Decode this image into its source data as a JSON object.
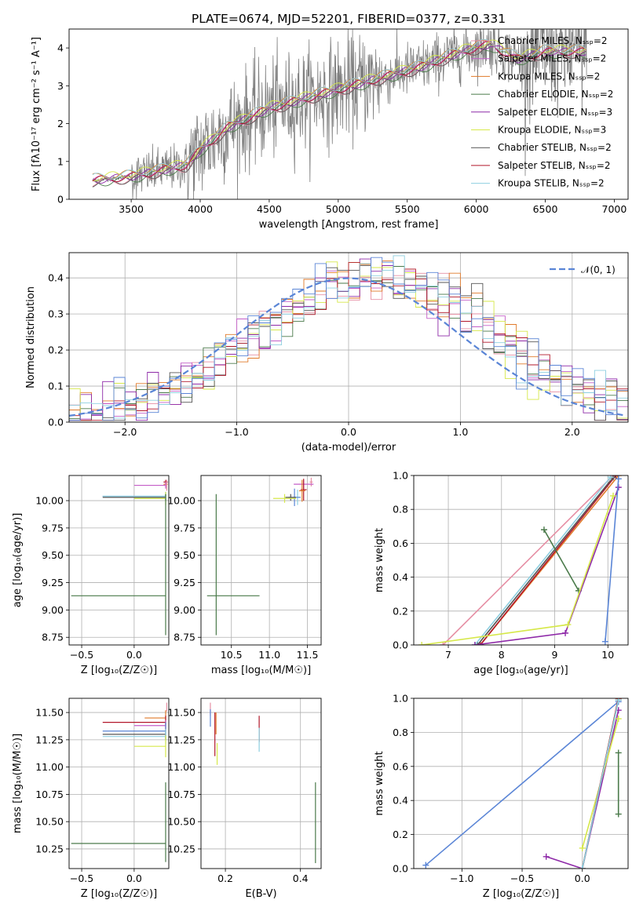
{
  "figure_title": "PLATE=0674, MJD=52201, FIBERID=0377, z=0.331",
  "chart_data": [
    {
      "type": "line",
      "name": "spectrum",
      "xlabel": "wavelength [Angstrom, rest frame]",
      "ylabel": "Flux [f_λ 10^-17 erg cm^-2 s^-1 A^-1]",
      "xlim": [
        3050,
        7100
      ],
      "ylim": [
        0,
        4.5
      ],
      "xticks": [
        3500,
        4000,
        4500,
        5000,
        5500,
        6000,
        6500,
        7000
      ],
      "yticks": [
        0,
        1,
        2,
        3,
        4
      ],
      "grid": false,
      "legend_position": "top-right",
      "legend": [
        {
          "label": "Chabrier MILES, N_SSP=2",
          "color": "#e68fa4"
        },
        {
          "label": "Salpeter MILES, N_SSP=2",
          "color": "#c45ec8"
        },
        {
          "label": "Kroupa MILES, N_SSP=2",
          "color": "#e07a2a"
        },
        {
          "label": "Chabrier ELODIE, N_SSP=2",
          "color": "#4a7a4a"
        },
        {
          "label": "Salpeter ELODIE, N_SSP=3",
          "color": "#8e2aa8"
        },
        {
          "label": "Kroupa ELODIE, N_SSP=3",
          "color": "#d6e84a"
        },
        {
          "label": "Chabrier STELIB, N_SSP=2",
          "color": "#555555"
        },
        {
          "label": "Salpeter STELIB, N_SSP=2",
          "color": "#b2182b"
        },
        {
          "label": "Kroupa STELIB, N_SSP=2",
          "color": "#8ecfe0"
        }
      ],
      "data_color": "#808080",
      "data_range": [
        3220,
        6800
      ],
      "continuum": {
        "x": [
          3220,
          3500,
          3700,
          3900,
          4000,
          4200,
          4500,
          4800,
          5000,
          5300,
          5600,
          5900,
          6100,
          6300,
          6500,
          6800
        ],
        "y": [
          0.5,
          0.6,
          0.75,
          0.9,
          1.3,
          1.9,
          2.4,
          2.7,
          2.9,
          3.2,
          3.5,
          3.9,
          4.1,
          3.7,
          3.9,
          3.9
        ]
      }
    },
    {
      "type": "step-histogram",
      "name": "residuals",
      "xlabel": "(data-model)/error",
      "ylabel": "Normed distribution",
      "xlim": [
        -2.5,
        2.5
      ],
      "ylim": [
        0,
        0.47
      ],
      "xticks": [
        -2,
        -1,
        0,
        1,
        2
      ],
      "yticks": [
        0.0,
        0.1,
        0.2,
        0.3,
        0.4
      ],
      "grid": true,
      "legend_position": "top-right",
      "normal_label": "𝒩(0, 1)",
      "normal_color": "#5a85d6",
      "series_colors": [
        "#e68fa4",
        "#c45ec8",
        "#e07a2a",
        "#4a7a4a",
        "#8e2aa8",
        "#d6e84a",
        "#555555",
        "#b2182b",
        "#8ecfe0",
        "#5a85d6"
      ],
      "bin_width": 0.1
    },
    {
      "type": "scatter",
      "name": "age-vs-Z",
      "xlabel": "Z [log10(Z/Z☉)]",
      "ylabel": "age [log10(age/yr)]",
      "xlim": [
        -0.62,
        0.33
      ],
      "ylim": [
        8.68,
        10.23
      ],
      "xticks": [
        -0.5,
        0.0
      ],
      "yticks": [
        8.75,
        9.0,
        9.25,
        9.5,
        9.75,
        10.0
      ],
      "grid": true,
      "points": [
        {
          "x": 0.3,
          "y": 10.17,
          "xerr": 0.02,
          "yerr": 0.02,
          "color": "#b2182b"
        },
        {
          "x": 0.3,
          "y": 10.15,
          "xerr": 0.02,
          "yerr": 0.02,
          "color": "#e07a2a"
        },
        {
          "x": 0.3,
          "y": 10.14,
          "x0": 0.0,
          "yerr": 0.03,
          "color": "#c45ec8"
        },
        {
          "x": 0.31,
          "y": 10.14,
          "yerr": 0.05,
          "color": "#e68fa4"
        },
        {
          "x": 0.3,
          "y": 10.04,
          "x0": -0.3,
          "yerr": 0.04,
          "color": "#5a85d6"
        },
        {
          "x": 0.3,
          "y": 10.04,
          "x0": -0.3,
          "yerr": 0.04,
          "color": "#8ecfe0"
        },
        {
          "x": 0.3,
          "y": 10.03,
          "x0": -0.3,
          "yerr": 0.03,
          "color": "#555555"
        },
        {
          "x": 0.3,
          "y": 10.02,
          "x0": 0.0,
          "yerr": 0.06,
          "color": "#d6e84a"
        },
        {
          "x": 0.3,
          "y": 9.13,
          "x0": -0.6,
          "ylow": 8.77,
          "yhigh": 10.06,
          "color": "#4a7a4a"
        }
      ]
    },
    {
      "type": "scatter",
      "name": "age-vs-mass",
      "xlabel": "mass [log10(M/M☉)]",
      "ylabel": "",
      "xlim": [
        10.1,
        11.68
      ],
      "ylim": [
        8.68,
        10.23
      ],
      "xticks": [
        10.5,
        11.0,
        11.5
      ],
      "yticks": [
        8.75,
        9.0,
        9.25,
        9.5,
        9.75,
        10.0
      ],
      "grid": true,
      "points": [
        {
          "x": 11.55,
          "y": 10.17,
          "yerr": 0.04,
          "xerr": 0.02,
          "color": "#e68fa4"
        },
        {
          "x": 11.45,
          "y": 10.15,
          "yerr": 0.04,
          "xerr": 0.13,
          "color": "#c45ec8"
        },
        {
          "x": 11.45,
          "y": 10.1,
          "yerr": 0.1,
          "xerr": 0.04,
          "color": "#b2182b"
        },
        {
          "x": 11.43,
          "y": 10.09,
          "yerr": 0.1,
          "xerr": 0.04,
          "color": "#e07a2a"
        },
        {
          "x": 11.37,
          "y": 10.03,
          "yerr": 0.07,
          "xerr": 0.04,
          "color": "#8ecfe0"
        },
        {
          "x": 11.33,
          "y": 10.03,
          "yerr": 0.08,
          "xerr": 0.08,
          "color": "#5a85d6"
        },
        {
          "x": 11.28,
          "y": 10.03,
          "yerr": 0.03,
          "xerr": 0.07,
          "color": "#555555"
        },
        {
          "x": 11.2,
          "y": 10.02,
          "yerr": 0.04,
          "xerr": 0.15,
          "color": "#d6e84a"
        },
        {
          "x": 10.3,
          "y": 9.13,
          "ylow": 8.77,
          "yhigh": 10.06,
          "xlow": 10.18,
          "xhigh": 10.87,
          "color": "#4a7a4a"
        }
      ]
    },
    {
      "type": "line",
      "name": "mass-weight-vs-age",
      "xlabel": "age [log10(age/yr)]",
      "ylabel": "mass weight",
      "xlim": [
        6.35,
        10.38
      ],
      "ylim": [
        0.0,
        1.0
      ],
      "xticks": [
        7,
        8,
        9,
        10
      ],
      "yticks": [
        0.0,
        0.2,
        0.4,
        0.6,
        0.8,
        1.0
      ],
      "grid": true,
      "series": [
        {
          "color": "#e68fa4",
          "x": [
            6.9,
            10.1
          ],
          "y": [
            0.0,
            1.0
          ]
        },
        {
          "color": "#e07a2a",
          "x": [
            7.6,
            10.2
          ],
          "y": [
            0.0,
            1.0
          ]
        },
        {
          "color": "#b2182b",
          "x": [
            7.6,
            10.15
          ],
          "y": [
            0.0,
            1.0
          ]
        },
        {
          "color": "#555555",
          "x": [
            7.55,
            10.1
          ],
          "y": [
            0.0,
            0.99
          ]
        },
        {
          "color": "#8ecfe0",
          "x": [
            7.5,
            10.05
          ],
          "y": [
            0.0,
            0.99
          ]
        },
        {
          "color": "#4a7a4a",
          "x": [
            8.8,
            9.45
          ],
          "y": [
            0.68,
            0.32
          ]
        },
        {
          "color": "#8e2aa8",
          "x": [
            7.5,
            9.2,
            10.2
          ],
          "y": [
            0.0,
            0.07,
            0.93
          ]
        },
        {
          "color": "#d6e84a",
          "x": [
            6.5,
            9.25,
            10.1
          ],
          "y": [
            0.0,
            0.12,
            0.88
          ]
        },
        {
          "color": "#5a85d6",
          "x": [
            9.95,
            10.2
          ],
          "y": [
            0.02,
            0.98
          ]
        }
      ]
    },
    {
      "type": "scatter",
      "name": "mass-vs-Z",
      "xlabel": "Z [log10(Z/Z☉)]",
      "ylabel": "mass [log10(M/M☉)]",
      "xlim": [
        -0.62,
        0.33
      ],
      "ylim": [
        10.07,
        11.63
      ],
      "xticks": [
        -0.5,
        0.0
      ],
      "yticks": [
        10.25,
        10.5,
        10.75,
        11.0,
        11.25,
        11.5
      ],
      "grid": true,
      "points": [
        {
          "x": 0.31,
          "y": 11.55,
          "yerr": 0.04,
          "color": "#e68fa4"
        },
        {
          "x": 0.3,
          "y": 11.45,
          "x0": 0.1,
          "yerr": 0.07,
          "color": "#e07a2a"
        },
        {
          "x": 0.3,
          "y": 11.41,
          "x0": -0.3,
          "yerr": 0.06,
          "color": "#b2182b"
        },
        {
          "x": 0.3,
          "y": 11.38,
          "x0": 0.0,
          "yerr": 0.05,
          "color": "#c45ec8"
        },
        {
          "x": 0.3,
          "y": 11.33,
          "x0": -0.3,
          "yerr": 0.08,
          "color": "#5a85d6"
        },
        {
          "x": 0.3,
          "y": 11.3,
          "x0": -0.3,
          "yerr": 0.05,
          "color": "#555555"
        },
        {
          "x": 0.3,
          "y": 11.28,
          "x0": -0.3,
          "yerr": 0.07,
          "color": "#8ecfe0"
        },
        {
          "x": 0.3,
          "y": 11.19,
          "x0": 0.0,
          "yerr": 0.1,
          "color": "#d6e84a"
        },
        {
          "x": 0.3,
          "y": 10.3,
          "x0": -0.6,
          "ylow": 10.13,
          "yhigh": 10.86,
          "color": "#4a7a4a"
        }
      ]
    },
    {
      "type": "scatter",
      "name": "mass-vs-EBV",
      "xlabel": "E(B-V)",
      "ylabel": "",
      "xlim": [
        0.135,
        0.455
      ],
      "ylim": [
        10.07,
        11.63
      ],
      "xticks": [
        0.2,
        0.4
      ],
      "yticks": [
        10.25,
        10.5,
        10.75,
        11.0,
        11.25,
        11.5
      ],
      "grid": true,
      "points": [
        {
          "x": 0.16,
          "y": 11.53,
          "yerr": 0.06,
          "color": "#e68fa4"
        },
        {
          "x": 0.16,
          "y": 11.45,
          "yerr": 0.08,
          "color": "#5a85d6"
        },
        {
          "x": 0.175,
          "y": 11.4,
          "yerr": 0.1,
          "color": "#e07a2a"
        },
        {
          "x": 0.172,
          "y": 11.3,
          "yerr": 0.2,
          "color": "#b2182b"
        },
        {
          "x": 0.178,
          "y": 11.12,
          "yerr": 0.1,
          "color": "#d6e84a"
        },
        {
          "x": 0.29,
          "y": 11.35,
          "yerr": 0.12,
          "color": "#b2182b"
        },
        {
          "x": 0.29,
          "y": 11.25,
          "yerr": 0.11,
          "color": "#8ecfe0"
        },
        {
          "x": 0.44,
          "y": 10.48,
          "ylow": 10.12,
          "yhigh": 10.86,
          "color": "#4a7a4a"
        }
      ]
    },
    {
      "type": "line",
      "name": "mass-weight-vs-Z",
      "xlabel": "Z [log10(Z/Z☉)]",
      "ylabel": "mass weight",
      "xlim": [
        -1.4,
        0.38
      ],
      "ylim": [
        0.0,
        1.0
      ],
      "xticks": [
        -1.0,
        -0.5,
        0.0
      ],
      "yticks": [
        0.0,
        0.2,
        0.4,
        0.6,
        0.8,
        1.0
      ],
      "grid": true,
      "series": [
        {
          "color": "#5a85d6",
          "x": [
            -1.3,
            0.3
          ],
          "y": [
            0.02,
            0.98
          ]
        },
        {
          "color": "#8e2aa8",
          "x": [
            -0.3,
            0.0,
            0.3
          ],
          "y": [
            0.07,
            0.0,
            0.93
          ]
        },
        {
          "color": "#d6e84a",
          "x": [
            0.0,
            0.3
          ],
          "y": [
            0.12,
            0.88
          ]
        },
        {
          "color": "#e68fa4",
          "x": [
            0.0,
            0.3
          ],
          "y": [
            0.0,
            1.0
          ]
        },
        {
          "color": "#e07a2a",
          "x": [
            0.0,
            0.3
          ],
          "y": [
            0.0,
            1.0
          ]
        },
        {
          "color": "#b2182b",
          "x": [
            0.0,
            0.3
          ],
          "y": [
            0.0,
            1.0
          ]
        },
        {
          "color": "#555555",
          "x": [
            0.0,
            0.3
          ],
          "y": [
            0.0,
            0.99
          ]
        },
        {
          "color": "#8ecfe0",
          "x": [
            0.0,
            0.3
          ],
          "y": [
            0.0,
            0.99
          ]
        },
        {
          "color": "#4a7a4a",
          "x": [
            0.3,
            0.3
          ],
          "y": [
            0.32,
            0.68
          ]
        }
      ]
    }
  ]
}
